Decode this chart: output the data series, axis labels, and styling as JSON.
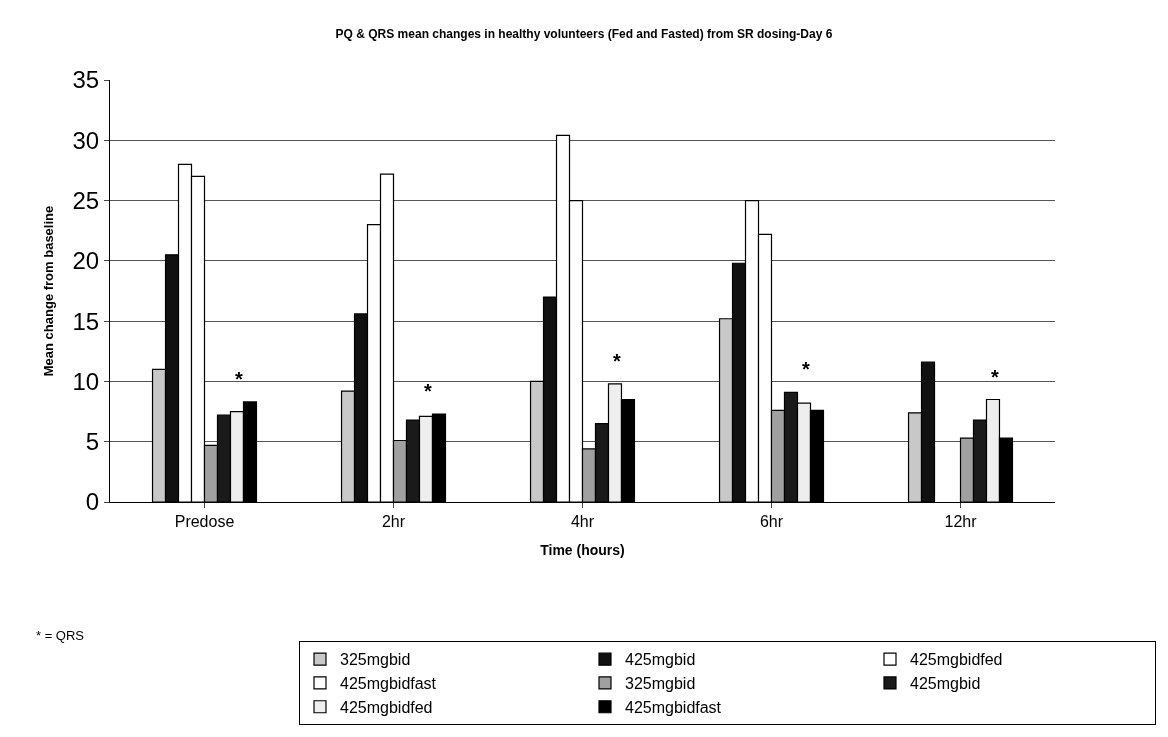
{
  "chart_data": {
    "type": "bar",
    "title": "PQ & QRS mean changes in healthy volunteers (Fed and Fasted) from SR dosing-Day 6",
    "xlabel": "Time (hours)",
    "ylabel": "Mean change from baseline",
    "categories": [
      "Predose",
      "2hr",
      "4hr",
      "6hr",
      "12hr"
    ],
    "series": [
      {
        "name": "325mgbid",
        "color": "#c8c8c8",
        "values": [
          11,
          9.2,
          10,
          15.2,
          7.4
        ]
      },
      {
        "name": "425mgbid",
        "color": "#111111",
        "values": [
          20.5,
          15.6,
          17,
          19.8,
          11.6
        ]
      },
      {
        "name": "425mgbidfed",
        "color": "#ffffff",
        "values": [
          28,
          23,
          30.4,
          25,
          null
        ]
      },
      {
        "name": "425mgbidfast",
        "color": "#ffffff",
        "values": [
          27,
          27.2,
          25,
          22.2,
          null
        ]
      },
      {
        "name": "325mgbid",
        "color": "#a0a0a0",
        "values": [
          4.7,
          5.1,
          4.4,
          7.6,
          5.3
        ]
      },
      {
        "name": "425mgbid",
        "color": "#1a1a1a",
        "values": [
          7.2,
          6.8,
          6.5,
          9.1,
          6.8
        ]
      },
      {
        "name": "425mgbidfed",
        "color": "#eeeeee",
        "values": [
          7.5,
          7.1,
          9.8,
          8.2,
          8.5
        ]
      },
      {
        "name": "425mgbidfast",
        "color": "#000000",
        "values": [
          8.3,
          7.3,
          8.5,
          7.6,
          5.3
        ]
      }
    ],
    "ylim": [
      0,
      35
    ],
    "yticks": [
      0,
      5,
      10,
      15,
      20,
      25,
      30,
      35
    ],
    "grid": "y",
    "legend": "bottom",
    "annotations": [
      "*",
      "*",
      "*",
      "*",
      "*",
      "* = QRS"
    ]
  }
}
